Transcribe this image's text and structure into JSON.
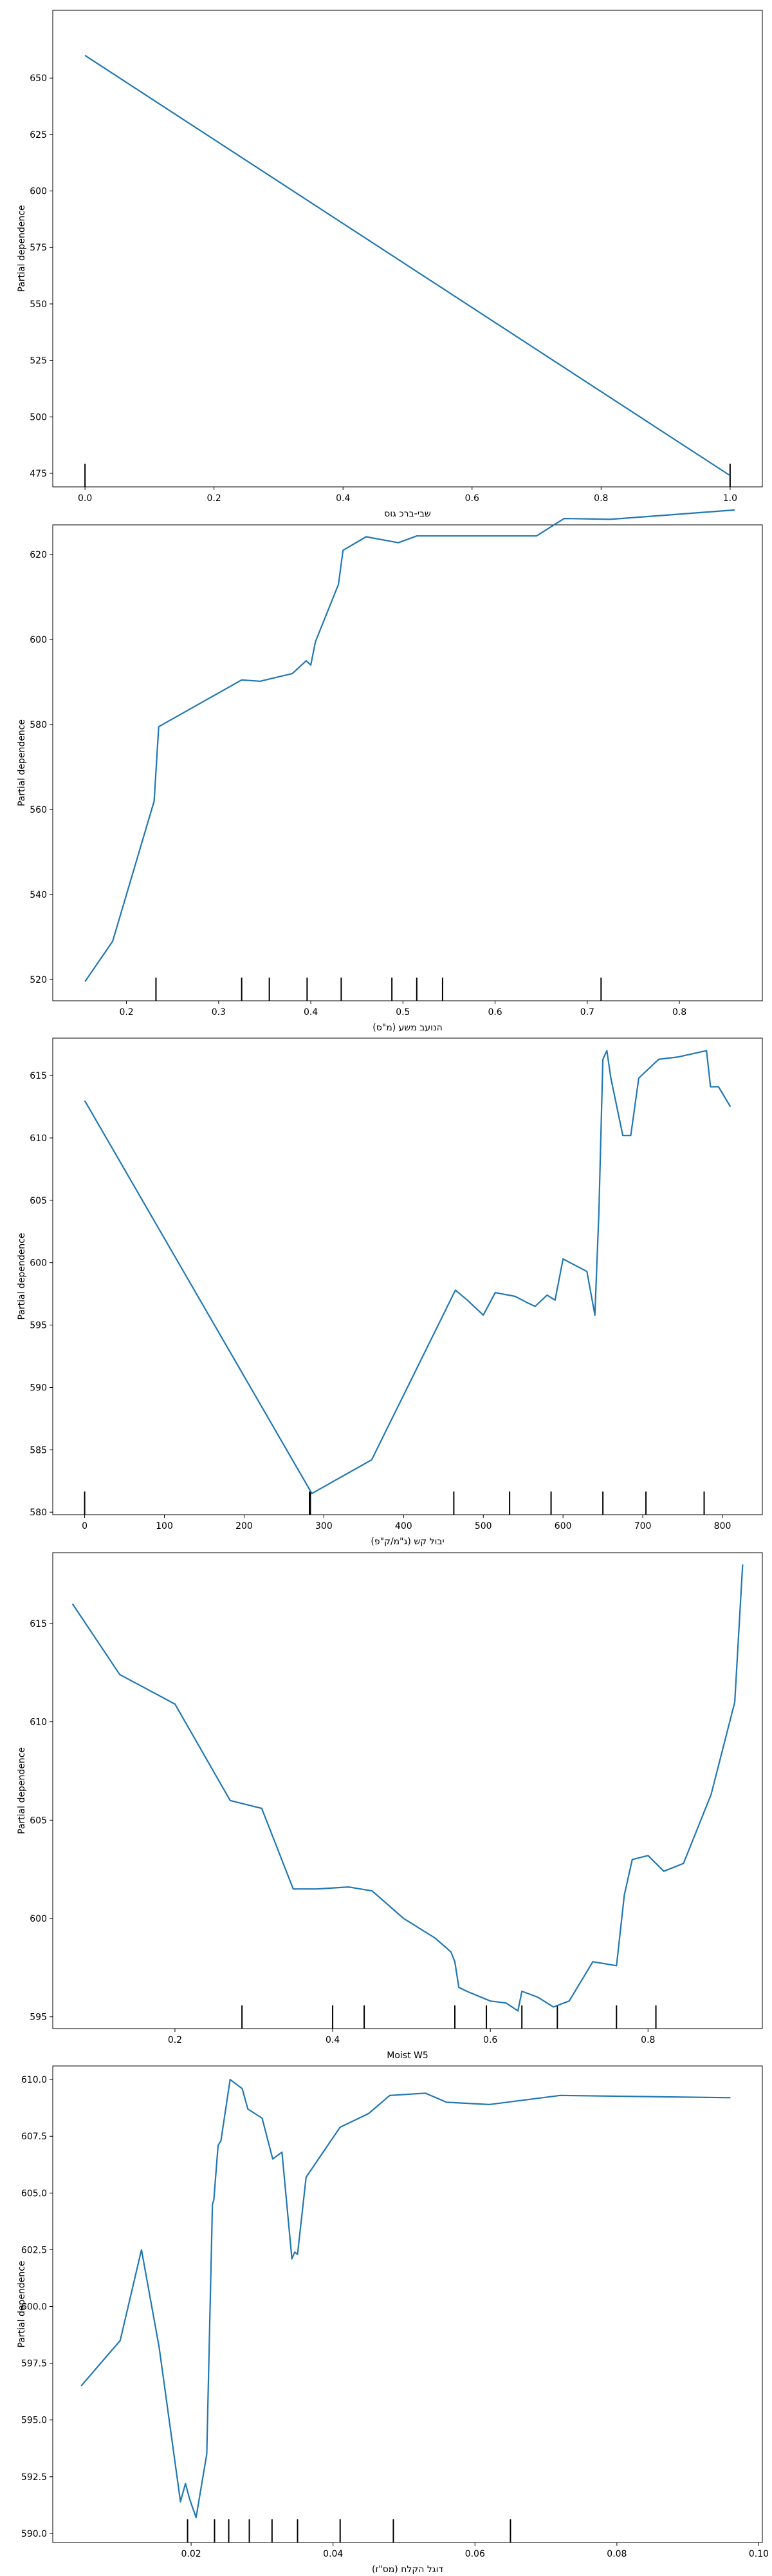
{
  "chart_data": [
    {
      "type": "line",
      "xlabel": "שבי-ברכ גוס",
      "ylabel": "Partial dependence",
      "xlim": [
        -0.05,
        1.05
      ],
      "ylim": [
        469,
        680
      ],
      "xticks": [
        "0.0",
        "0.2",
        "0.4",
        "0.6",
        "0.8",
        "1.0"
      ],
      "yticks": [
        "475",
        "500",
        "525",
        "550",
        "575",
        "600",
        "625",
        "650"
      ],
      "series": [
        {
          "color": "#1f77b4",
          "x": [
            0.0,
            1.0
          ],
          "y": [
            660,
            474
          ]
        }
      ],
      "deciles": [
        0.0,
        1.0
      ]
    },
    {
      "type": "line",
      "xlabel": "(מ\"ס) הנועב משע",
      "ylabel": "Partial dependence",
      "xlim": [
        0.12,
        0.89
      ],
      "ylim": [
        515,
        627
      ],
      "xticks": [
        "0.2",
        "0.3",
        "0.4",
        "0.5",
        "0.6",
        "0.7",
        "0.8"
      ],
      "yticks": [
        "520",
        "540",
        "560",
        "580",
        "600",
        "620"
      ],
      "series": [
        {
          "color": "#1f77b4",
          "x": [
            0.155,
            0.185,
            0.23,
            0.235,
            0.325,
            0.345,
            0.38,
            0.395,
            0.4,
            0.405,
            0.43,
            0.435,
            0.46,
            0.495,
            0.515,
            0.6,
            0.645,
            0.675,
            0.725,
            0.86
          ],
          "y": [
            519.5,
            529,
            562,
            579.5,
            590.5,
            590.2,
            592,
            595,
            594,
            599.5,
            613,
            621,
            624.2,
            622.8,
            624.4,
            624.4,
            624.4,
            628.5,
            628.3,
            630.5
          ]
        }
      ],
      "deciles": [
        0.232,
        0.325,
        0.355,
        0.396,
        0.433,
        0.488,
        0.515,
        0.543,
        0.715
      ]
    },
    {
      "type": "line",
      "xlabel": "(ג\"מ/ק\"פ) יבול קש",
      "ylabel": "Partial dependence",
      "xlim": [
        -40,
        850
      ],
      "ylim": [
        579.8,
        618
      ],
      "xticks": [
        "0",
        "100",
        "200",
        "300",
        "400",
        "500",
        "600",
        "700",
        "800"
      ],
      "yticks": [
        "580",
        "585",
        "590",
        "595",
        "600",
        "605",
        "610",
        "615"
      ],
      "series": [
        {
          "color": "#1f77b4",
          "x": [
            0,
            285,
            360,
            465,
            480,
            500,
            515,
            540,
            555,
            565,
            580,
            590,
            600,
            630,
            640,
            645,
            650,
            655,
            660,
            675,
            685,
            695,
            720,
            745,
            780,
            785,
            795,
            810
          ],
          "y": [
            613,
            581.5,
            584.2,
            597.8,
            597,
            595.8,
            597.6,
            597.3,
            596.8,
            596.5,
            597.4,
            597.0,
            600.3,
            599.3,
            595.8,
            604,
            616.3,
            617,
            614.8,
            610.2,
            610.2,
            614.8,
            616.3,
            616.5,
            617,
            614.1,
            614.1,
            612.5
          ]
        }
      ],
      "deciles": [
        0,
        283,
        283,
        282,
        463,
        533,
        585,
        650,
        704,
        777
      ]
    },
    {
      "type": "line",
      "xlabel": "Moist W5",
      "ylabel": "Partial dependence",
      "xlim": [
        0.045,
        0.945
      ],
      "ylim": [
        594.4,
        618.6
      ],
      "xticks": [
        "0.2",
        "0.4",
        "0.6",
        "0.8"
      ],
      "yticks": [
        "595",
        "600",
        "605",
        "610",
        "615"
      ],
      "series": [
        {
          "color": "#1f77b4",
          "x": [
            0.07,
            0.13,
            0.2,
            0.27,
            0.31,
            0.35,
            0.38,
            0.42,
            0.45,
            0.49,
            0.53,
            0.55,
            0.555,
            0.56,
            0.57,
            0.6,
            0.62,
            0.635,
            0.64,
            0.66,
            0.68,
            0.7,
            0.73,
            0.76,
            0.77,
            0.78,
            0.8,
            0.82,
            0.845,
            0.88,
            0.91,
            0.92
          ],
          "y": [
            616,
            612.4,
            610.9,
            606,
            605.6,
            601.5,
            601.5,
            601.6,
            601.4,
            600,
            599,
            598.3,
            597.8,
            596.5,
            596.3,
            595.8,
            595.7,
            595.3,
            596.3,
            596,
            595.5,
            595.8,
            597.8,
            597.6,
            601.2,
            603,
            603.2,
            602.4,
            602.8,
            606.3,
            611,
            618
          ]
        }
      ],
      "deciles": [
        0.285,
        0.4,
        0.44,
        0.555,
        0.595,
        0.64,
        0.685,
        0.76,
        0.81
      ]
    },
    {
      "type": "line",
      "xlabel": "(מס\"ז) דוגל הקלח",
      "ylabel": "Partial dependence",
      "xlim": [
        0.0005,
        0.1005
      ],
      "ylim": [
        589.6,
        610.6
      ],
      "xticks": [
        "0.02",
        "0.04",
        "0.06",
        "0.08",
        "0.10"
      ],
      "yticks": [
        "590.0",
        "592.5",
        "595.0",
        "597.5",
        "600.0",
        "602.5",
        "605.0",
        "607.5",
        "610.0"
      ],
      "series": [
        {
          "color": "#1f77b4",
          "x": [
            0.0045,
            0.01,
            0.013,
            0.0155,
            0.0185,
            0.0192,
            0.0198,
            0.0207,
            0.0222,
            0.023,
            0.0232,
            0.0238,
            0.0242,
            0.0255,
            0.0272,
            0.028,
            0.029,
            0.03,
            0.0315,
            0.0328,
            0.0342,
            0.0346,
            0.035,
            0.0362,
            0.041,
            0.045,
            0.048,
            0.053,
            0.056,
            0.062,
            0.072,
            0.096
          ],
          "y": [
            596.5,
            598.5,
            602.5,
            598.2,
            591.4,
            592.2,
            591.5,
            590.7,
            593.5,
            604.5,
            604.7,
            607.1,
            607.3,
            610.0,
            609.6,
            608.7,
            608.5,
            608.3,
            606.5,
            606.8,
            602.1,
            602.4,
            602.3,
            605.7,
            607.9,
            608.5,
            609.3,
            609.4,
            609.0,
            608.9,
            609.3,
            609.2
          ]
        }
      ],
      "deciles": [
        0.0195,
        0.0233,
        0.0253,
        0.0282,
        0.0314,
        0.035,
        0.041,
        0.0485,
        0.065
      ]
    }
  ]
}
